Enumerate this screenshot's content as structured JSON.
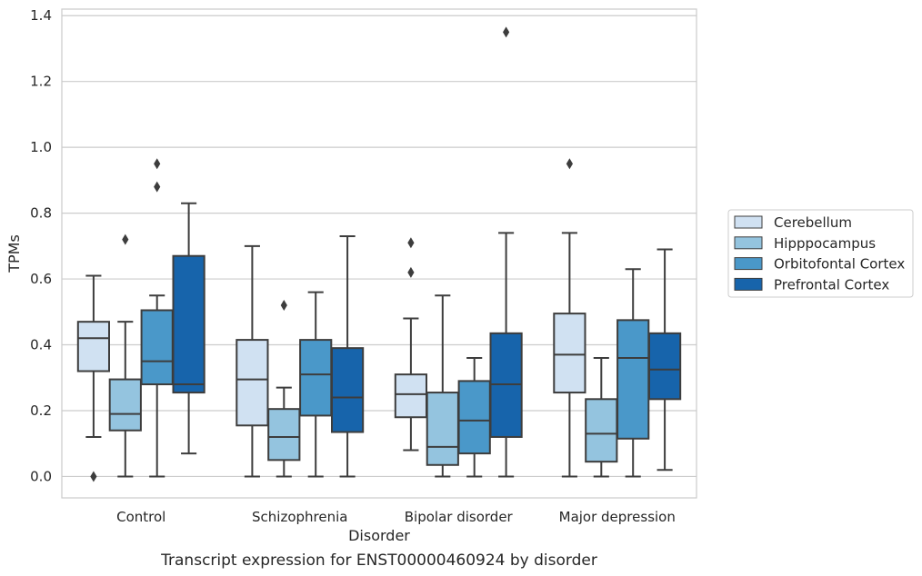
{
  "chart_data": {
    "type": "box",
    "caption": "Transcript expression for ENST00000460924 by disorder",
    "xlabel": "Disorder",
    "ylabel": "TPMs",
    "ylim": [
      -0.065,
      1.42
    ],
    "yticks": [
      "0.0",
      "0.2",
      "0.4",
      "0.6",
      "0.8",
      "1.0",
      "1.2",
      "1.4"
    ],
    "grid": true,
    "legend_position": "right",
    "categories": [
      "Control",
      "Schizophrenia",
      "Bipolar disorder",
      "Major depression"
    ],
    "series": [
      {
        "name": "Cerebellum",
        "color": "#d0e1f2",
        "boxes": [
          {
            "whislo": 0.12,
            "q1": 0.32,
            "med": 0.42,
            "q3": 0.47,
            "whishi": 0.61,
            "fliers": [
              0.0
            ]
          },
          {
            "whislo": 0.0,
            "q1": 0.155,
            "med": 0.295,
            "q3": 0.415,
            "whishi": 0.7,
            "fliers": []
          },
          {
            "whislo": 0.08,
            "q1": 0.18,
            "med": 0.25,
            "q3": 0.31,
            "whishi": 0.48,
            "fliers": [
              0.71,
              0.62
            ]
          },
          {
            "whislo": 0.0,
            "q1": 0.255,
            "med": 0.37,
            "q3": 0.495,
            "whishi": 0.74,
            "fliers": [
              0.95
            ]
          }
        ]
      },
      {
        "name": "Hipppocampus",
        "color": "#94c4df",
        "boxes": [
          {
            "whislo": 0.0,
            "q1": 0.14,
            "med": 0.19,
            "q3": 0.295,
            "whishi": 0.47,
            "fliers": [
              0.72
            ]
          },
          {
            "whislo": 0.0,
            "q1": 0.05,
            "med": 0.12,
            "q3": 0.205,
            "whishi": 0.27,
            "fliers": [
              0.52
            ]
          },
          {
            "whislo": 0.0,
            "q1": 0.035,
            "med": 0.09,
            "q3": 0.255,
            "whishi": 0.55,
            "fliers": []
          },
          {
            "whislo": 0.0,
            "q1": 0.045,
            "med": 0.13,
            "q3": 0.235,
            "whishi": 0.36,
            "fliers": []
          }
        ]
      },
      {
        "name": "Orbitofontal Cortex",
        "color": "#4a98c9",
        "boxes": [
          {
            "whislo": 0.0,
            "q1": 0.28,
            "med": 0.35,
            "q3": 0.505,
            "whishi": 0.55,
            "fliers": [
              0.95,
              0.88
            ]
          },
          {
            "whislo": 0.0,
            "q1": 0.185,
            "med": 0.31,
            "q3": 0.415,
            "whishi": 0.56,
            "fliers": []
          },
          {
            "whislo": 0.0,
            "q1": 0.07,
            "med": 0.17,
            "q3": 0.29,
            "whishi": 0.36,
            "fliers": []
          },
          {
            "whislo": 0.0,
            "q1": 0.115,
            "med": 0.36,
            "q3": 0.475,
            "whishi": 0.63,
            "fliers": []
          }
        ]
      },
      {
        "name": "Prefrontal Cortex",
        "color": "#1764ab",
        "boxes": [
          {
            "whislo": 0.07,
            "q1": 0.255,
            "med": 0.28,
            "q3": 0.67,
            "whishi": 0.83,
            "fliers": []
          },
          {
            "whislo": 0.0,
            "q1": 0.135,
            "med": 0.24,
            "q3": 0.39,
            "whishi": 0.73,
            "fliers": []
          },
          {
            "whislo": 0.0,
            "q1": 0.12,
            "med": 0.28,
            "q3": 0.435,
            "whishi": 0.74,
            "fliers": [
              1.35
            ]
          },
          {
            "whislo": 0.02,
            "q1": 0.235,
            "med": 0.325,
            "q3": 0.435,
            "whishi": 0.69,
            "fliers": []
          }
        ]
      }
    ]
  }
}
